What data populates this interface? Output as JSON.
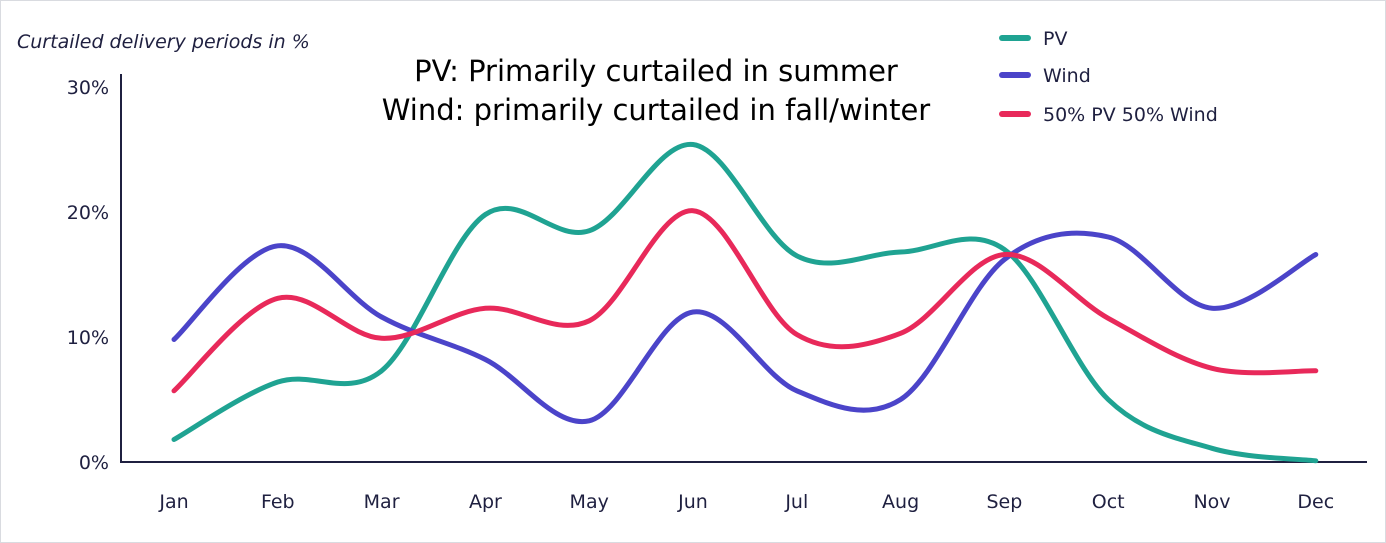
{
  "chart_data": {
    "type": "line",
    "title": [
      "PV: Primarily curtailed in summer",
      "Wind: primarily curtailed in fall/winter"
    ],
    "ylabel": "Curtailed delivery periods in %",
    "xlabel": "",
    "ylim": [
      0,
      30
    ],
    "ytick_values": [
      0,
      10,
      20,
      30
    ],
    "ytick_labels": [
      "0%",
      "10%",
      "20%",
      "30%"
    ],
    "categories": [
      "Jan",
      "Feb",
      "Mar",
      "Apr",
      "May",
      "Jun",
      "Jul",
      "Aug",
      "Sep",
      "Oct",
      "Nov",
      "Dec"
    ],
    "legend_position": "top-right",
    "series": [
      {
        "name": "PV",
        "color": "#1fa392",
        "values": [
          1.8,
          6.4,
          7.3,
          19.8,
          18.5,
          25.4,
          16.5,
          16.8,
          17.0,
          5.0,
          1.1,
          0.1
        ]
      },
      {
        "name": "Wind",
        "color": "#4b44c9",
        "values": [
          9.8,
          17.3,
          11.6,
          8.2,
          3.3,
          12.0,
          5.7,
          5.0,
          16.2,
          18.0,
          12.3,
          16.6
        ]
      },
      {
        "name": "50% PV 50% Wind",
        "color": "#e8295a",
        "values": [
          5.7,
          13.1,
          9.9,
          12.3,
          11.3,
          20.1,
          10.2,
          10.3,
          16.6,
          11.5,
          7.5,
          7.3
        ]
      }
    ]
  }
}
